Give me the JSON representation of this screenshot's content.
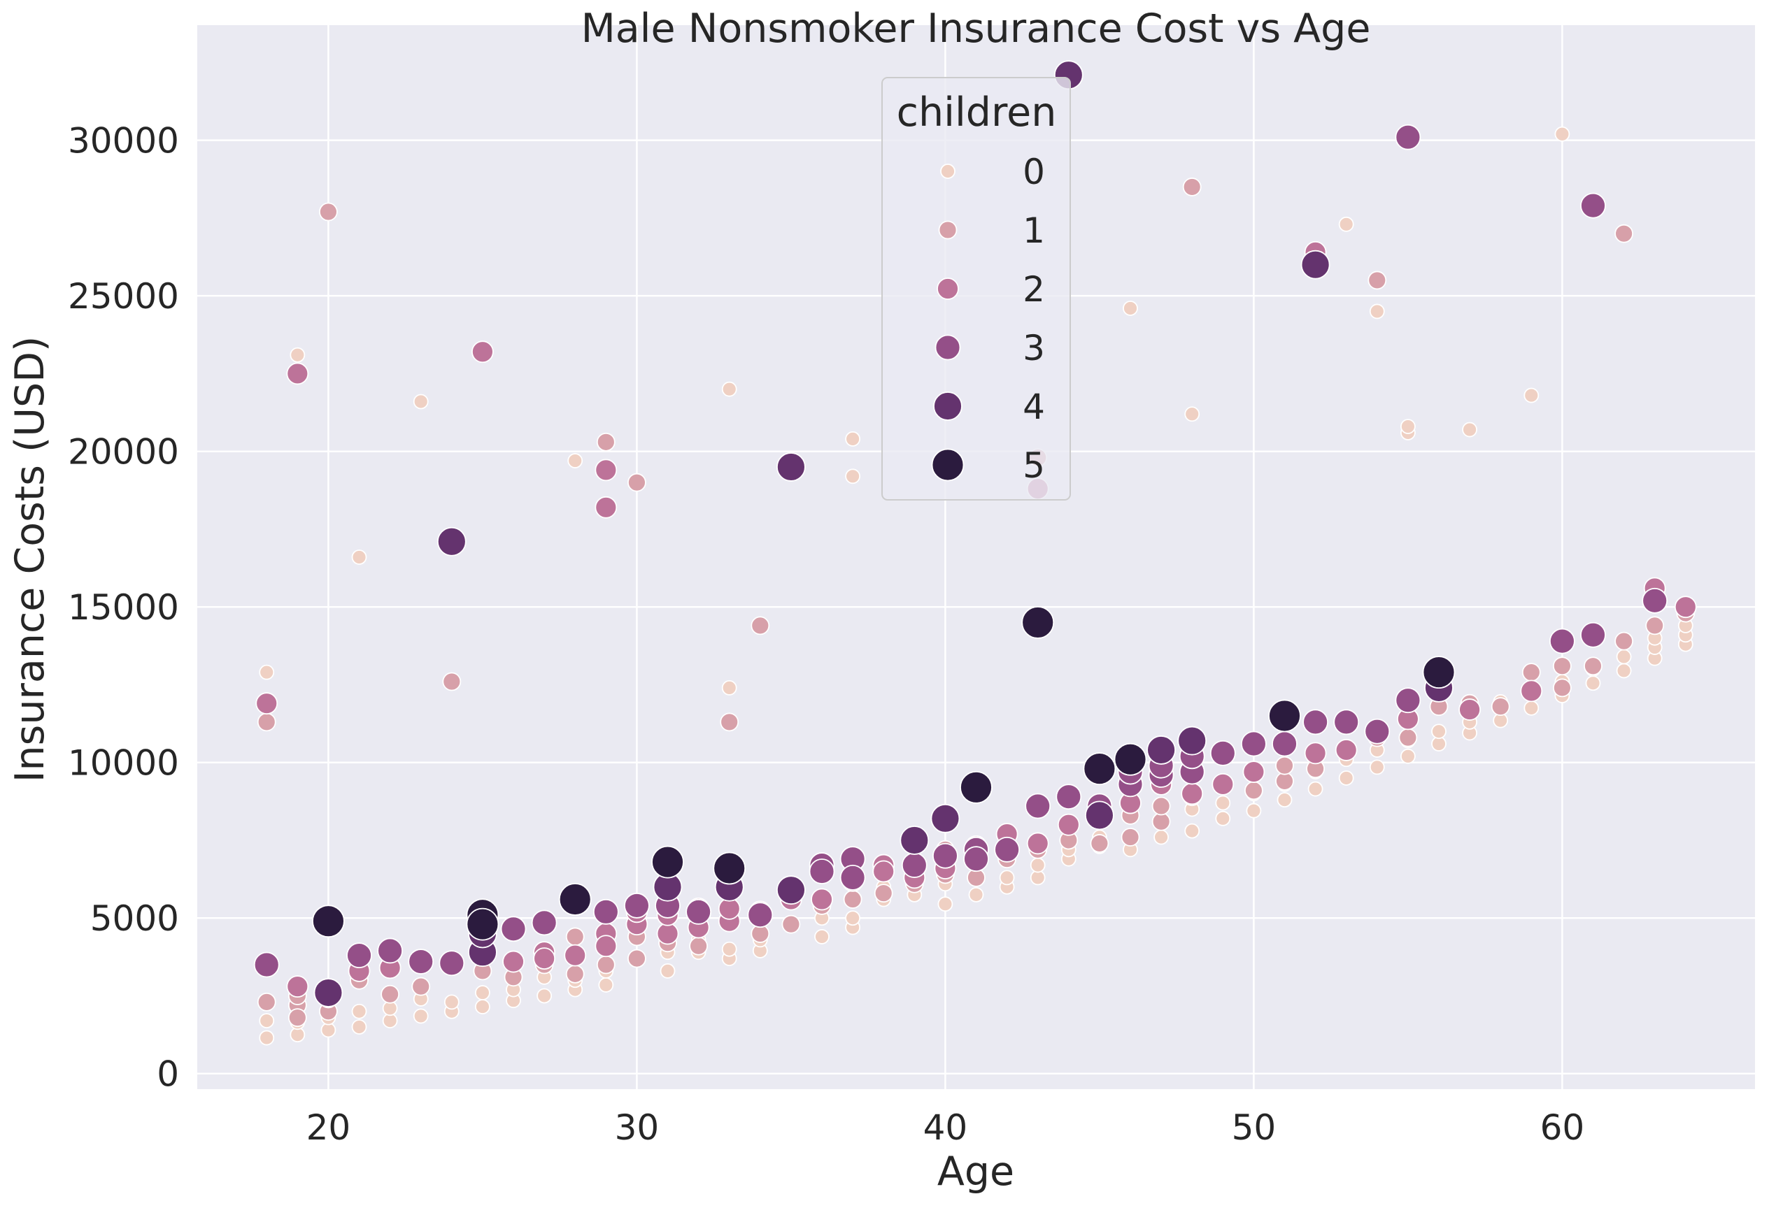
{
  "chart_data": {
    "type": "scatter",
    "title": "Male Nonsmoker Insurance Cost vs Age",
    "xlabel": "Age",
    "ylabel": "Insurance Costs (USD)",
    "xlim": [
      15.75,
      66.25
    ],
    "ylim": [
      -500,
      33700
    ],
    "xticks": [
      20,
      30,
      40,
      50,
      60
    ],
    "yticks": [
      0,
      5000,
      10000,
      15000,
      20000,
      25000,
      30000
    ],
    "grid": true,
    "legend": {
      "title": "children",
      "position": "top-center",
      "entries": [
        {
          "label": "0",
          "value": 0
        },
        {
          "label": "1",
          "value": 1
        },
        {
          "label": "2",
          "value": 2
        },
        {
          "label": "3",
          "value": 3
        },
        {
          "label": "4",
          "value": 4
        },
        {
          "label": "5",
          "value": 5
        }
      ]
    },
    "hue_colors": [
      "#EFD0C3",
      "#D7A0A9",
      "#BD7399",
      "#944F88",
      "#64336E",
      "#2B1B3E"
    ],
    "background": "#EAEAF2",
    "series": [
      {
        "name": "0",
        "points": [
          [
            18,
            1150
          ],
          [
            18,
            1700
          ],
          [
            18,
            12900
          ],
          [
            19,
            1250
          ],
          [
            19,
            1650
          ],
          [
            19,
            23100
          ],
          [
            20,
            1400
          ],
          [
            20,
            1800
          ],
          [
            21,
            1500
          ],
          [
            21,
            2000
          ],
          [
            21,
            16600
          ],
          [
            22,
            1700
          ],
          [
            22,
            2100
          ],
          [
            23,
            1850
          ],
          [
            23,
            2400
          ],
          [
            23,
            21600
          ],
          [
            24,
            2000
          ],
          [
            24,
            2300
          ],
          [
            25,
            2150
          ],
          [
            25,
            2600
          ],
          [
            26,
            2350
          ],
          [
            26,
            2700
          ],
          [
            27,
            2500
          ],
          [
            27,
            3100
          ],
          [
            28,
            2700
          ],
          [
            28,
            3000
          ],
          [
            28,
            19700
          ],
          [
            29,
            2850
          ],
          [
            29,
            3300
          ],
          [
            30,
            3700
          ],
          [
            31,
            3300
          ],
          [
            31,
            3900
          ],
          [
            32,
            3900
          ],
          [
            32,
            4300
          ],
          [
            33,
            3700
          ],
          [
            33,
            4000
          ],
          [
            33,
            12400
          ],
          [
            33,
            22000
          ],
          [
            34,
            3950
          ],
          [
            34,
            4300
          ],
          [
            35,
            4750
          ],
          [
            36,
            4400
          ],
          [
            36,
            5000
          ],
          [
            37,
            4700
          ],
          [
            37,
            5000
          ],
          [
            37,
            19200
          ],
          [
            37,
            20400
          ],
          [
            38,
            5600
          ],
          [
            38,
            6000
          ],
          [
            39,
            5750
          ],
          [
            39,
            6300
          ],
          [
            40,
            5450
          ],
          [
            40,
            6100
          ],
          [
            41,
            5750
          ],
          [
            41,
            6300
          ],
          [
            42,
            6000
          ],
          [
            42,
            6300
          ],
          [
            43,
            6300
          ],
          [
            43,
            6700
          ],
          [
            44,
            6900
          ],
          [
            44,
            7200
          ],
          [
            45,
            7300
          ],
          [
            45,
            7600
          ],
          [
            46,
            7200
          ],
          [
            46,
            7600
          ],
          [
            46,
            24600
          ],
          [
            47,
            7600
          ],
          [
            47,
            8100
          ],
          [
            48,
            7800
          ],
          [
            48,
            8500
          ],
          [
            48,
            21200
          ],
          [
            49,
            8200
          ],
          [
            49,
            8700
          ],
          [
            50,
            8450
          ],
          [
            50,
            9000
          ],
          [
            51,
            8800
          ],
          [
            51,
            9300
          ],
          [
            52,
            9150
          ],
          [
            52,
            9700
          ],
          [
            53,
            9500
          ],
          [
            53,
            10100
          ],
          [
            53,
            27300
          ],
          [
            54,
            9850
          ],
          [
            54,
            10400
          ],
          [
            54,
            24500
          ],
          [
            55,
            10200
          ],
          [
            55,
            10700
          ],
          [
            55,
            20600
          ],
          [
            55,
            20800
          ],
          [
            56,
            10600
          ],
          [
            56,
            11000
          ],
          [
            57,
            10950
          ],
          [
            57,
            11300
          ],
          [
            57,
            20700
          ],
          [
            58,
            11350
          ],
          [
            58,
            11800
          ],
          [
            58,
            11950
          ],
          [
            59,
            11750
          ],
          [
            59,
            12200
          ],
          [
            59,
            21800
          ],
          [
            60,
            12150
          ],
          [
            60,
            12600
          ],
          [
            60,
            30200
          ],
          [
            61,
            12550
          ],
          [
            61,
            13000
          ],
          [
            62,
            12950
          ],
          [
            62,
            13400
          ],
          [
            63,
            13350
          ],
          [
            63,
            13700
          ],
          [
            63,
            14000
          ],
          [
            64,
            13800
          ],
          [
            64,
            14100
          ],
          [
            64,
            14400
          ]
        ]
      },
      {
        "name": "1",
        "points": [
          [
            18,
            11300
          ],
          [
            18,
            2300
          ],
          [
            19,
            2200
          ],
          [
            19,
            1800
          ],
          [
            19,
            2500
          ],
          [
            20,
            2000
          ],
          [
            20,
            2400
          ],
          [
            20,
            27700
          ],
          [
            21,
            3000
          ],
          [
            22,
            2550
          ],
          [
            23,
            2800
          ],
          [
            24,
            12600
          ],
          [
            25,
            3300
          ],
          [
            26,
            3100
          ],
          [
            27,
            3500
          ],
          [
            28,
            3200
          ],
          [
            28,
            4400
          ],
          [
            29,
            3500
          ],
          [
            29,
            4100
          ],
          [
            29,
            20300
          ],
          [
            30,
            3700
          ],
          [
            30,
            4400
          ],
          [
            30,
            19000
          ],
          [
            31,
            4200
          ],
          [
            32,
            4100
          ],
          [
            33,
            5100
          ],
          [
            33,
            11300
          ],
          [
            34,
            5100
          ],
          [
            34,
            4500
          ],
          [
            34,
            14400
          ],
          [
            35,
            4800
          ],
          [
            36,
            5400
          ],
          [
            37,
            5600
          ],
          [
            38,
            5800
          ],
          [
            38,
            6500
          ],
          [
            39,
            6100
          ],
          [
            40,
            6400
          ],
          [
            40,
            7200
          ],
          [
            41,
            6300
          ],
          [
            42,
            6900
          ],
          [
            43,
            7200
          ],
          [
            43,
            19800
          ],
          [
            44,
            7500
          ],
          [
            45,
            7400
          ],
          [
            46,
            8300
          ],
          [
            46,
            7600
          ],
          [
            47,
            8100
          ],
          [
            47,
            8600
          ],
          [
            48,
            8900
          ],
          [
            48,
            28500
          ],
          [
            49,
            9300
          ],
          [
            50,
            9100
          ],
          [
            51,
            9400
          ],
          [
            51,
            9900
          ],
          [
            52,
            9800
          ],
          [
            53,
            10400
          ],
          [
            54,
            10800
          ],
          [
            54,
            25500
          ],
          [
            55,
            10800
          ],
          [
            55,
            11400
          ],
          [
            56,
            11800
          ],
          [
            57,
            11900
          ],
          [
            58,
            11800
          ],
          [
            59,
            12900
          ],
          [
            60,
            13100
          ],
          [
            60,
            12400
          ],
          [
            61,
            13100
          ],
          [
            62,
            13900
          ],
          [
            62,
            27000
          ],
          [
            63,
            14400
          ],
          [
            64,
            14800
          ]
        ]
      },
      {
        "name": "2",
        "points": [
          [
            18,
            11900
          ],
          [
            19,
            2800
          ],
          [
            19,
            22500
          ],
          [
            21,
            3300
          ],
          [
            22,
            3400
          ],
          [
            25,
            23200
          ],
          [
            26,
            3600
          ],
          [
            27,
            3900
          ],
          [
            27,
            3700
          ],
          [
            28,
            3800
          ],
          [
            29,
            4500
          ],
          [
            29,
            4100
          ],
          [
            29,
            19400
          ],
          [
            29,
            18200
          ],
          [
            30,
            4800
          ],
          [
            30,
            5200
          ],
          [
            31,
            4500
          ],
          [
            31,
            5100
          ],
          [
            32,
            4700
          ],
          [
            32,
            5300
          ],
          [
            33,
            4900
          ],
          [
            33,
            5300
          ],
          [
            34,
            5200
          ],
          [
            35,
            5600
          ],
          [
            36,
            5600
          ],
          [
            37,
            6200
          ],
          [
            38,
            6700
          ],
          [
            38,
            6500
          ],
          [
            39,
            6300
          ],
          [
            40,
            6600
          ],
          [
            41,
            7300
          ],
          [
            42,
            7700
          ],
          [
            43,
            7400
          ],
          [
            43,
            18800
          ],
          [
            44,
            8000
          ],
          [
            45,
            8500
          ],
          [
            46,
            8700
          ],
          [
            47,
            9300
          ],
          [
            48,
            9000
          ],
          [
            49,
            9300
          ],
          [
            50,
            9700
          ],
          [
            51,
            10600
          ],
          [
            52,
            10300
          ],
          [
            52,
            26400
          ],
          [
            53,
            10400
          ],
          [
            54,
            11000
          ],
          [
            55,
            11400
          ],
          [
            56,
            12400
          ],
          [
            57,
            11700
          ],
          [
            59,
            12300
          ],
          [
            63,
            15600
          ],
          [
            64,
            15000
          ]
        ]
      },
      {
        "name": "3",
        "points": [
          [
            18,
            3500
          ],
          [
            21,
            3800
          ],
          [
            22,
            3950
          ],
          [
            23,
            3600
          ],
          [
            24,
            3550
          ],
          [
            26,
            4650
          ],
          [
            27,
            4850
          ],
          [
            29,
            5200
          ],
          [
            30,
            5400
          ],
          [
            31,
            5400
          ],
          [
            32,
            5200
          ],
          [
            34,
            5100
          ],
          [
            36,
            6700
          ],
          [
            36,
            6500
          ],
          [
            37,
            6900
          ],
          [
            37,
            6300
          ],
          [
            39,
            6700
          ],
          [
            40,
            7000
          ],
          [
            41,
            7200
          ],
          [
            41,
            6900
          ],
          [
            42,
            7200
          ],
          [
            43,
            8600
          ],
          [
            44,
            8900
          ],
          [
            45,
            8600
          ],
          [
            46,
            9300
          ],
          [
            46,
            9700
          ],
          [
            47,
            9600
          ],
          [
            47,
            9900
          ],
          [
            48,
            9700
          ],
          [
            48,
            10200
          ],
          [
            49,
            10300
          ],
          [
            50,
            10600
          ],
          [
            51,
            10600
          ],
          [
            52,
            11300
          ],
          [
            53,
            11300
          ],
          [
            54,
            11000
          ],
          [
            55,
            12000
          ],
          [
            55,
            30100
          ],
          [
            60,
            13900
          ],
          [
            61,
            14100
          ],
          [
            61,
            27900
          ],
          [
            63,
            15200
          ]
        ]
      },
      {
        "name": "4",
        "points": [
          [
            20,
            2600
          ],
          [
            24,
            17100
          ],
          [
            25,
            3900
          ],
          [
            25,
            4500
          ],
          [
            31,
            6000
          ],
          [
            33,
            6000
          ],
          [
            35,
            19500
          ],
          [
            35,
            5900
          ],
          [
            39,
            7500
          ],
          [
            40,
            8200
          ],
          [
            44,
            32100
          ],
          [
            45,
            8300
          ],
          [
            47,
            10400
          ],
          [
            48,
            10700
          ],
          [
            52,
            26000
          ],
          [
            56,
            12400
          ]
        ]
      },
      {
        "name": "5",
        "points": [
          [
            20,
            4900
          ],
          [
            25,
            5100
          ],
          [
            25,
            4800
          ],
          [
            28,
            5600
          ],
          [
            31,
            6800
          ],
          [
            33,
            6600
          ],
          [
            41,
            9200
          ],
          [
            43,
            14500
          ],
          [
            45,
            9800
          ],
          [
            46,
            10100
          ],
          [
            51,
            11500
          ],
          [
            56,
            12900
          ]
        ]
      }
    ]
  }
}
